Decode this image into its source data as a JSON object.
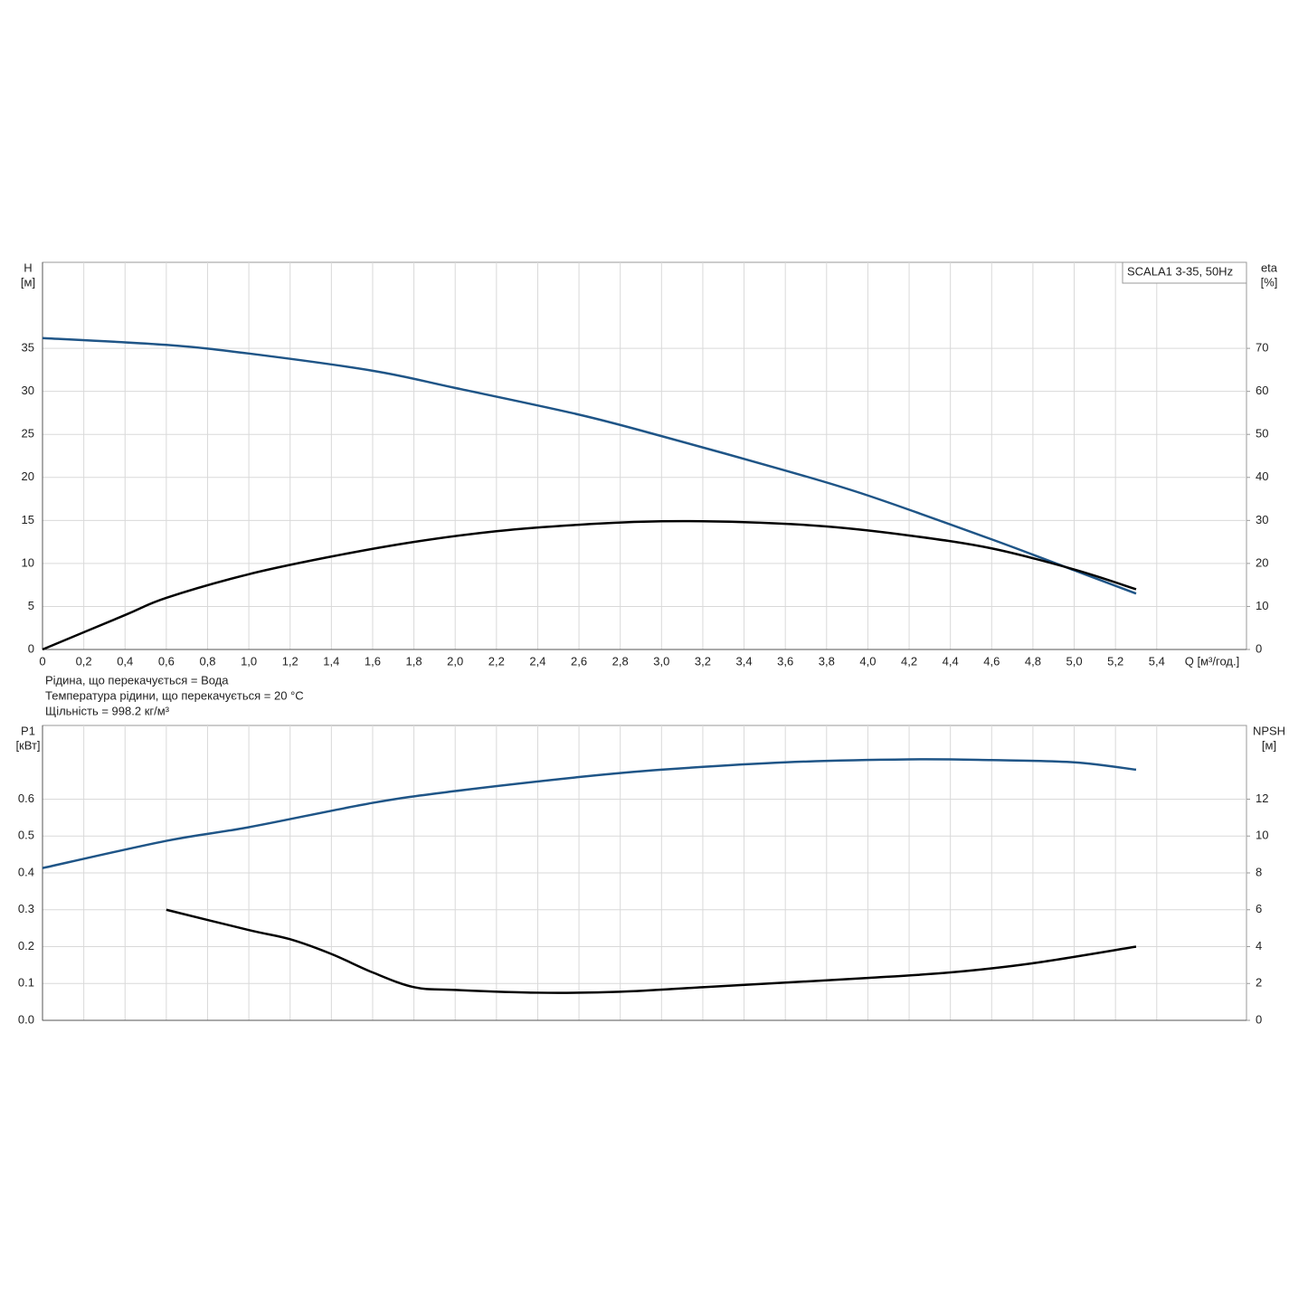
{
  "chart_data": [
    {
      "type": "line",
      "legend_title": "SCALA1 3-35, 50Hz",
      "ylabel": "H",
      "yunit": "[м]",
      "y2label": "eta",
      "y2unit": "[%]",
      "xlabel": "Q [м³/год.]",
      "annotations": [
        "Рідина, що перекачується = Вода",
        "Температура рідини, що перекачується = 20 °C",
        "Щільність = 998.2 кг/м³"
      ],
      "xlim": [
        0,
        5.835
      ],
      "xticks": [
        0,
        {
          "value": 0.2,
          "label": "0,2"
        },
        {
          "value": 0.4,
          "label": "0,4"
        },
        {
          "value": 0.6,
          "label": "0,6"
        },
        {
          "value": 0.8,
          "label": "0,8"
        },
        {
          "value": 1.0,
          "label": "1,0"
        },
        {
          "value": 1.2,
          "label": "1,2"
        },
        {
          "value": 1.4,
          "label": "1,4"
        },
        {
          "value": 1.6,
          "label": "1,6"
        },
        {
          "value": 1.8,
          "label": "1,8"
        },
        {
          "value": 2.0,
          "label": "2,0"
        },
        {
          "value": 2.2,
          "label": "2,2"
        },
        {
          "value": 2.4,
          "label": "2,4"
        },
        {
          "value": 2.6,
          "label": "2,6"
        },
        {
          "value": 2.8,
          "label": "2,8"
        },
        {
          "value": 3.0,
          "label": "3,0"
        },
        {
          "value": 3.2,
          "label": "3,2"
        },
        {
          "value": 3.4,
          "label": "3,4"
        },
        {
          "value": 3.6,
          "label": "3,6"
        },
        {
          "value": 3.8,
          "label": "3,8"
        },
        {
          "value": 4.0,
          "label": "4,0"
        },
        {
          "value": 4.2,
          "label": "4,2"
        },
        {
          "value": 4.4,
          "label": "4,4"
        },
        {
          "value": 4.6,
          "label": "4,6"
        },
        {
          "value": 4.8,
          "label": "4,8"
        },
        {
          "value": 5.0,
          "label": "5,0"
        },
        {
          "value": 5.2,
          "label": "5,2"
        },
        {
          "value": 5.4,
          "label": "5,4"
        }
      ],
      "ylim": [
        0,
        45
      ],
      "yticks": [
        0,
        5,
        10,
        15,
        20,
        25,
        30,
        35
      ],
      "y2lim": [
        0,
        90
      ],
      "y2ticks": [
        0,
        10,
        20,
        30,
        40,
        50,
        60,
        70
      ],
      "grid": true,
      "series": [
        {
          "name": "H",
          "color": "#1f5587",
          "x": [
            0,
            0.6,
            1.0,
            1.6,
            2.0,
            2.6,
            3.0,
            3.6,
            4.0,
            4.6,
            5.0,
            5.3
          ],
          "values": [
            36.2,
            35.4,
            34.4,
            32.4,
            30.4,
            27.3,
            24.8,
            20.8,
            17.9,
            12.8,
            9.2,
            6.5
          ]
        },
        {
          "name": "eta",
          "color": "#000000",
          "axis": "y2",
          "x": [
            0,
            0.4,
            0.6,
            1.0,
            1.4,
            1.8,
            2.2,
            2.6,
            3.0,
            3.4,
            3.8,
            4.2,
            4.6,
            5.0,
            5.3
          ],
          "values": [
            0,
            8,
            12,
            17.5,
            21.6,
            25,
            27.5,
            29,
            29.8,
            29.6,
            28.6,
            26.5,
            23.5,
            18.6,
            14
          ]
        }
      ]
    },
    {
      "type": "line",
      "ylabel": "P1",
      "yunit": "[кВт]",
      "y2label": "NPSH",
      "y2unit": "[м]",
      "xlim": [
        0,
        5.835
      ],
      "ylim": [
        0,
        0.8
      ],
      "yticks": [
        {
          "value": 0,
          "label": "0.0"
        },
        0.1,
        0.2,
        0.3,
        0.4,
        0.5,
        0.6
      ],
      "y2lim": [
        0,
        16
      ],
      "y2ticks": [
        0,
        2,
        4,
        6,
        8,
        10,
        12
      ],
      "grid": true,
      "series": [
        {
          "name": "P1",
          "color": "#1f5587",
          "x": [
            0,
            0.6,
            1.0,
            1.6,
            2.0,
            2.6,
            3.0,
            3.6,
            4.2,
            4.6,
            5.0,
            5.3
          ],
          "values": [
            0.413,
            0.487,
            0.524,
            0.59,
            0.622,
            0.66,
            0.68,
            0.7,
            0.708,
            0.706,
            0.7,
            0.68
          ]
        },
        {
          "name": "NPSH",
          "color": "#000000",
          "axis": "y2",
          "x": [
            0.6,
            1.0,
            1.2,
            1.4,
            1.6,
            1.8,
            2.0,
            2.4,
            2.8,
            3.2,
            3.6,
            4.0,
            4.4,
            4.8,
            5.3
          ],
          "values": [
            6.0,
            4.9,
            4.4,
            3.6,
            2.6,
            1.8,
            1.65,
            1.5,
            1.55,
            1.8,
            2.05,
            2.3,
            2.6,
            3.1,
            4.0
          ]
        }
      ]
    }
  ]
}
